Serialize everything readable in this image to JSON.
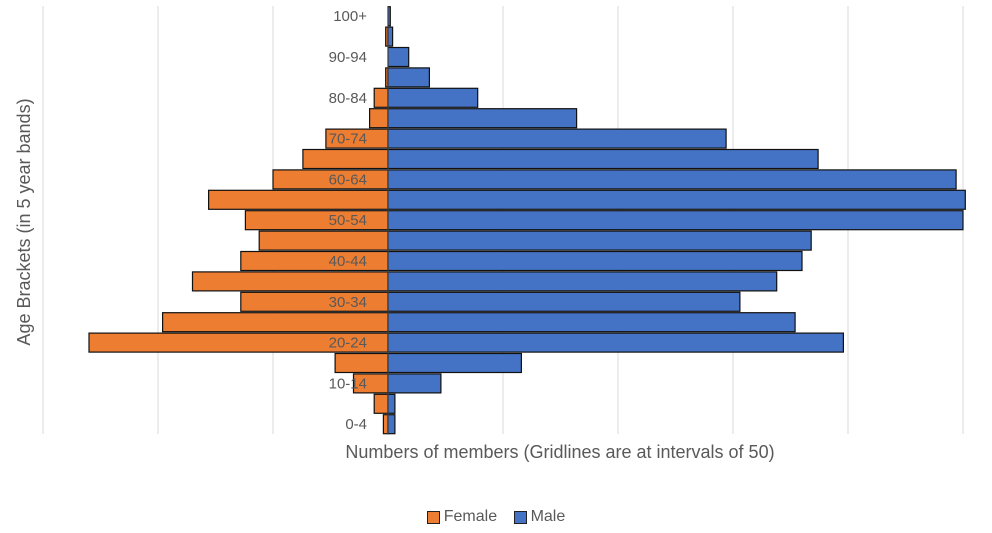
{
  "chart_data": {
    "type": "bar",
    "orientation": "horizontal",
    "subtype": "population-pyramid",
    "categories": [
      "0-4",
      "5-9",
      "10-14",
      "15-19",
      "20-24",
      "25-29",
      "30-34",
      "35-39",
      "40-44",
      "45-49",
      "50-54",
      "55-59",
      "60-64",
      "65-69",
      "70-74",
      "75-79",
      "80-84",
      "85-89",
      "90-94",
      "95-99",
      "100+"
    ],
    "tick_labels": [
      "0-4",
      "10-14",
      "20-24",
      "30-34",
      "40-44",
      "50-54",
      "60-64",
      "70-74",
      "80-84",
      "90-94",
      "100+"
    ],
    "series": [
      {
        "name": "Female",
        "color": "#ED7D31",
        "side": "left",
        "values": [
          2,
          6,
          15,
          23,
          130,
          98,
          64,
          85,
          64,
          56,
          62,
          78,
          50,
          37,
          27,
          8,
          6,
          1,
          0,
          1,
          0
        ]
      },
      {
        "name": "Male",
        "color": "#4472C4",
        "side": "right",
        "values": [
          3,
          3,
          23,
          58,
          198,
          177,
          153,
          169,
          180,
          184,
          250,
          251,
          247,
          187,
          147,
          82,
          39,
          18,
          9,
          2,
          1
        ]
      }
    ],
    "xlabel": "Numbers of members (Gridlines are at intervals of 50)",
    "ylabel": "Age Brackets (in 5 year bands)",
    "xlim": [
      -150,
      250
    ],
    "grid_interval": 50,
    "grid": true,
    "legend_position": "bottom"
  }
}
